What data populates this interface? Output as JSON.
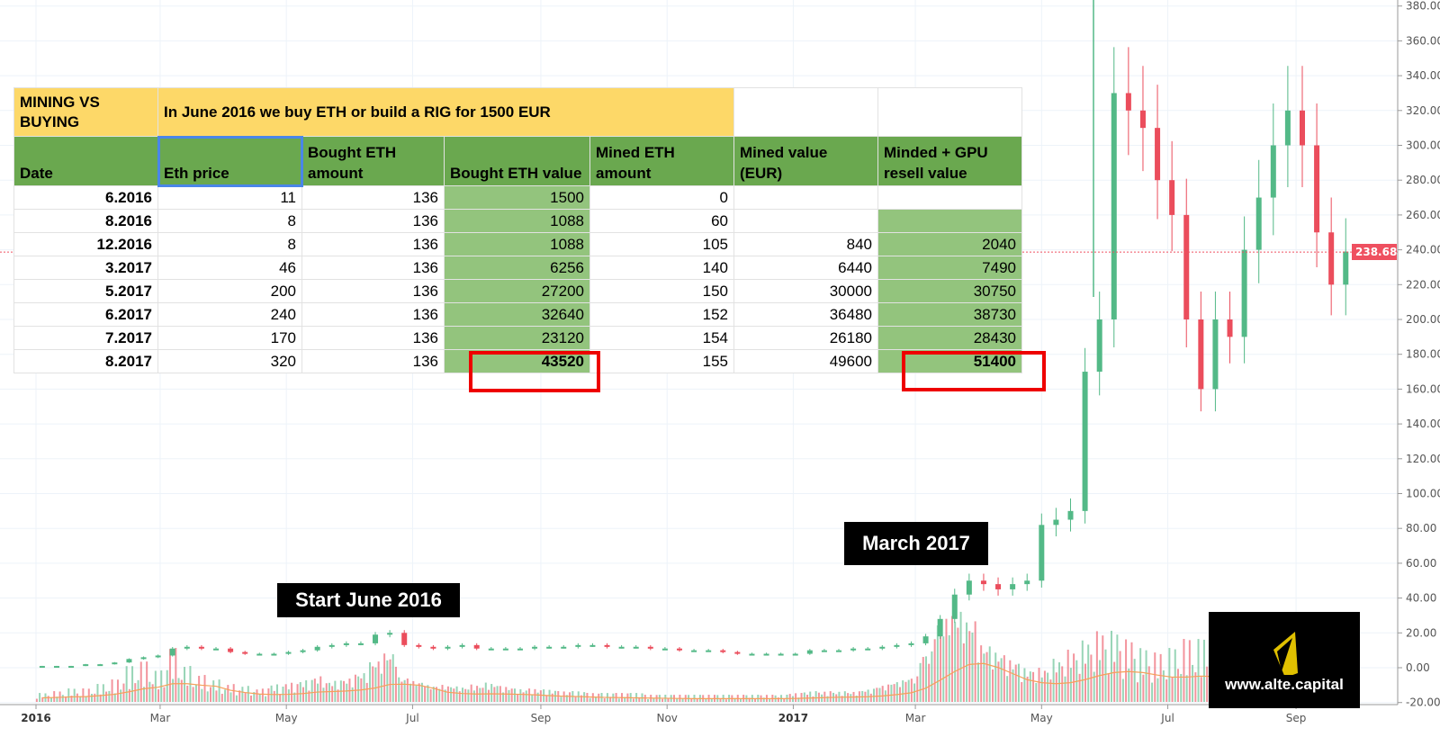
{
  "chart_data": {
    "type": "candlestick",
    "y_axis": {
      "position": "right",
      "ylim": [
        -20,
        380
      ],
      "ticks": [
        "-20.00",
        "0.00",
        "20.00",
        "40.00",
        "60.00",
        "80.00",
        "100.00",
        "120.00",
        "140.00",
        "160.00",
        "180.00",
        "200.00",
        "220.00",
        "240.00",
        "260.00",
        "280.00",
        "300.00",
        "320.00",
        "340.00",
        "360.00",
        "380.00"
      ]
    },
    "x_axis": {
      "ticks": [
        {
          "label": "2016",
          "date": "2016-01-01",
          "bold": true
        },
        {
          "label": "Mar",
          "date": "2016-03-01"
        },
        {
          "label": "May",
          "date": "2016-05-01"
        },
        {
          "label": "Jul",
          "date": "2016-07-01"
        },
        {
          "label": "Sep",
          "date": "2016-09-01"
        },
        {
          "label": "Nov",
          "date": "2016-11-01"
        },
        {
          "label": "2017",
          "date": "2017-01-01",
          "bold": true
        },
        {
          "label": "Mar",
          "date": "2017-03-01"
        },
        {
          "label": "May",
          "date": "2017-05-01"
        },
        {
          "label": "Jul",
          "date": "2017-07-01"
        },
        {
          "label": "Sep",
          "date": "2017-09-01"
        }
      ]
    },
    "grid": true,
    "last_price": "238.68",
    "colors": {
      "up": "#53b987",
      "down": "#eb4d5c",
      "volume_ma": "#f5a05a",
      "last_price": "#ef5060",
      "grid": "#edf3f9"
    },
    "x": [
      "2016-01-04",
      "2016-01-11",
      "2016-01-18",
      "2016-01-25",
      "2016-02-01",
      "2016-02-08",
      "2016-02-15",
      "2016-02-22",
      "2016-02-29",
      "2016-03-07",
      "2016-03-14",
      "2016-03-21",
      "2016-03-28",
      "2016-04-04",
      "2016-04-11",
      "2016-04-18",
      "2016-04-25",
      "2016-05-02",
      "2016-05-09",
      "2016-05-16",
      "2016-05-23",
      "2016-05-30",
      "2016-06-06",
      "2016-06-13",
      "2016-06-20",
      "2016-06-27",
      "2016-07-04",
      "2016-07-11",
      "2016-07-18",
      "2016-07-25",
      "2016-08-01",
      "2016-08-08",
      "2016-08-15",
      "2016-08-22",
      "2016-08-29",
      "2016-09-05",
      "2016-09-12",
      "2016-09-19",
      "2016-09-26",
      "2016-10-03",
      "2016-10-10",
      "2016-10-17",
      "2016-10-24",
      "2016-10-31",
      "2016-11-07",
      "2016-11-14",
      "2016-11-21",
      "2016-11-28",
      "2016-12-05",
      "2016-12-12",
      "2016-12-19",
      "2016-12-26",
      "2017-01-02",
      "2017-01-09",
      "2017-01-16",
      "2017-01-23",
      "2017-01-30",
      "2017-02-06",
      "2017-02-13",
      "2017-02-20",
      "2017-02-27",
      "2017-03-06",
      "2017-03-13",
      "2017-03-20",
      "2017-03-27",
      "2017-04-03",
      "2017-04-10",
      "2017-04-17",
      "2017-04-24",
      "2017-05-01",
      "2017-05-08",
      "2017-05-15",
      "2017-05-22",
      "2017-05-29",
      "2017-06-05",
      "2017-06-12",
      "2017-06-19",
      "2017-06-26",
      "2017-07-03",
      "2017-07-10",
      "2017-07-17",
      "2017-07-24",
      "2017-07-31",
      "2017-08-07",
      "2017-08-14",
      "2017-08-21",
      "2017-08-28",
      "2017-09-04",
      "2017-09-11",
      "2017-09-18",
      "2017-09-25"
    ],
    "close": [
      1,
      1,
      1,
      2,
      2,
      3,
      5,
      6,
      7,
      11,
      12,
      11,
      11,
      9,
      8,
      8,
      8,
      9,
      10,
      12,
      13,
      14,
      14,
      19,
      20,
      13,
      12,
      11,
      12,
      13,
      11,
      11,
      11,
      11,
      12,
      12,
      12,
      13,
      13,
      12,
      12,
      12,
      11,
      11,
      10,
      10,
      10,
      9,
      8,
      8,
      8,
      8,
      8,
      10,
      10,
      10,
      11,
      11,
      12,
      13,
      14,
      18,
      28,
      42,
      50,
      48,
      45,
      48,
      50,
      82,
      85,
      90,
      170,
      200,
      330,
      320,
      310,
      280,
      260,
      200,
      160,
      200,
      190,
      240,
      270,
      300,
      320,
      300,
      250,
      220,
      239
    ],
    "volume_relative": [
      10,
      12,
      15,
      15,
      20,
      25,
      40,
      45,
      35,
      60,
      40,
      30,
      25,
      20,
      18,
      15,
      20,
      22,
      25,
      30,
      25,
      28,
      35,
      50,
      60,
      30,
      25,
      20,
      20,
      18,
      20,
      22,
      18,
      15,
      15,
      14,
      12,
      12,
      10,
      10,
      10,
      10,
      8,
      8,
      8,
      8,
      8,
      8,
      8,
      8,
      8,
      8,
      10,
      12,
      12,
      12,
      12,
      15,
      20,
      25,
      30,
      60,
      100,
      110,
      100,
      70,
      60,
      50,
      40,
      40,
      50,
      60,
      70,
      80,
      80,
      70,
      60,
      55,
      60,
      70,
      70,
      50,
      40,
      35,
      40,
      45,
      40,
      40,
      45,
      40,
      35
    ]
  },
  "table": {
    "title": "MINING VS BUYING",
    "subtitle": "In June 2016 we buy ETH or build a RIG for 1500 EUR",
    "headers": [
      "Date",
      "Eth price",
      "Bought ETH amount",
      "Bought ETH value",
      "Mined ETH amount",
      "Mined value (EUR)",
      "Minded + GPU resell value"
    ],
    "rows": [
      [
        "6.2016",
        "11",
        "136",
        "1500",
        "0",
        "",
        ""
      ],
      [
        "8.2016",
        "8",
        "136",
        "1088",
        "60",
        "",
        ""
      ],
      [
        "12.2016",
        "8",
        "136",
        "1088",
        "105",
        "840",
        "2040"
      ],
      [
        "3.2017",
        "46",
        "136",
        "6256",
        "140",
        "6440",
        "7490"
      ],
      [
        "5.2017",
        "200",
        "136",
        "27200",
        "150",
        "30000",
        "30750"
      ],
      [
        "6.2017",
        "240",
        "136",
        "32640",
        "152",
        "36480",
        "38730"
      ],
      [
        "7.2017",
        "170",
        "136",
        "23120",
        "154",
        "26180",
        "28430"
      ],
      [
        "8.2017",
        "320",
        "136",
        "43520",
        "155",
        "49600",
        "51400"
      ]
    ]
  },
  "annotations": {
    "start": "Start June 2016",
    "march": "March 2017"
  },
  "logo": {
    "text": "www.alte.capital",
    "color": "#e0c000"
  }
}
